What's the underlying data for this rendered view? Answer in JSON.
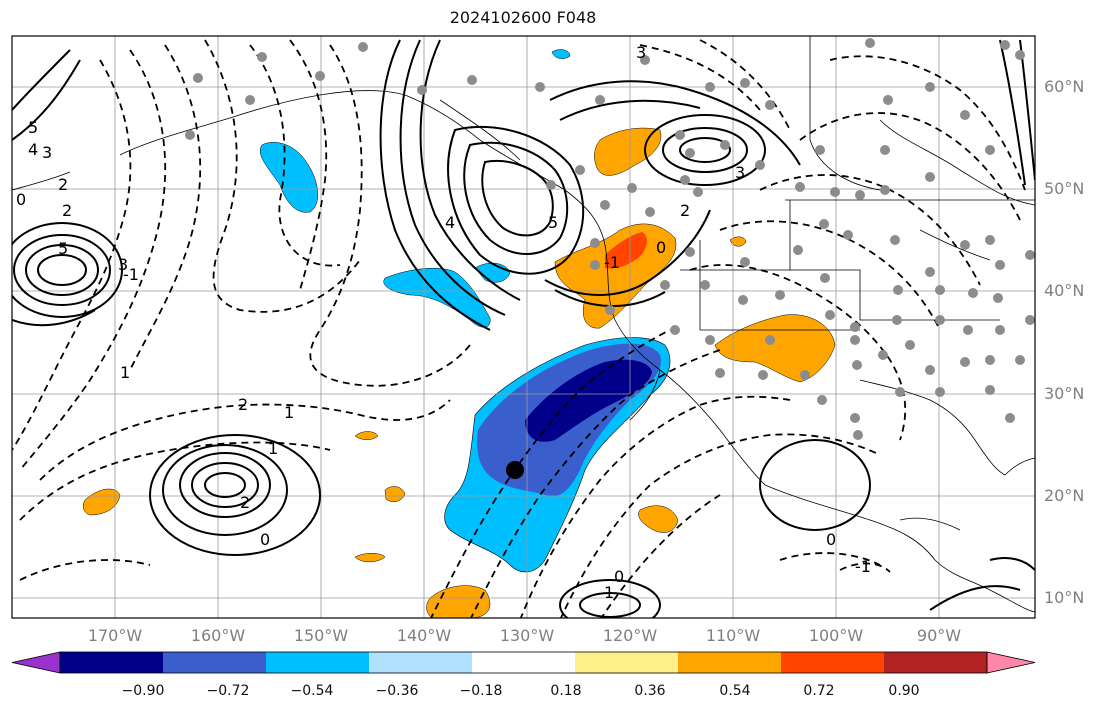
{
  "title": "2024102600 F048",
  "lat_labels": [
    "60°N",
    "50°N",
    "40°N",
    "30°N",
    "20°N",
    "10°N"
  ],
  "lon_labels": [
    "170°W",
    "160°W",
    "150°W",
    "140°W",
    "130°W",
    "120°W",
    "110°W",
    "100°W",
    "90°W"
  ],
  "colorbar": {
    "colors": [
      "#9a32cd",
      "#00008b",
      "#3a5fcd",
      "#00bfff",
      "#b0e2ff",
      "#ffffff",
      "#fff08a",
      "#ffa500",
      "#ff4500",
      "#b22222",
      "#ff88aa"
    ],
    "ticks": [
      "−0.90",
      "−0.72",
      "−0.54",
      "−0.36",
      "−0.18",
      "0.18",
      "0.36",
      "0.54",
      "0.72",
      "0.90"
    ]
  },
  "contour_labels": [
    "5",
    "3",
    "2",
    "4",
    "0",
    "1",
    "-1",
    "5",
    "3",
    "2",
    "1",
    "0",
    "2",
    "1",
    "0",
    "-1",
    "1",
    "0",
    "3",
    "4",
    "5",
    "2",
    "0",
    "-1",
    "2",
    "3"
  ],
  "marker": "black-dot-marker"
}
